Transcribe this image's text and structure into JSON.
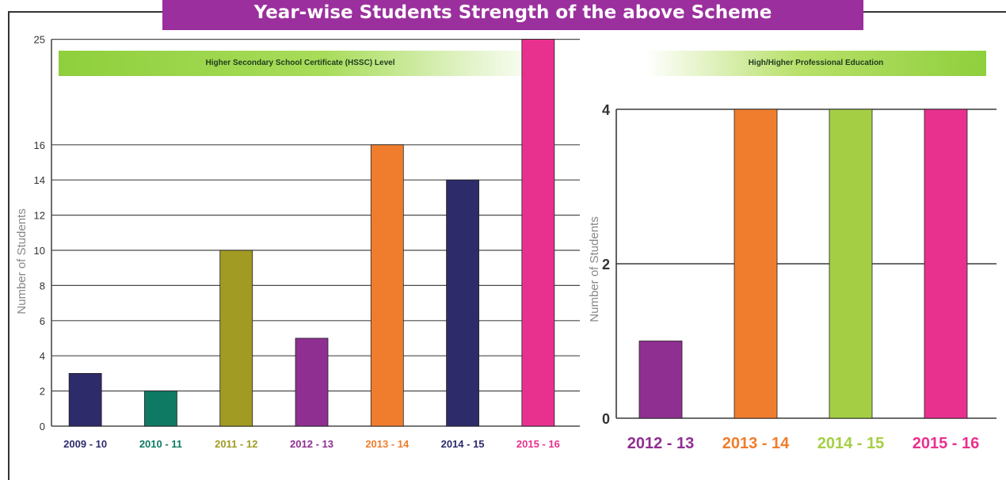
{
  "page": {
    "title": "Year-wise Students Strength of the above Scheme"
  },
  "chart_data": [
    {
      "type": "bar",
      "title": "Higher Secondary School Certificate (HSSC) Level",
      "ylabel": "Number of Students",
      "xlabel": "",
      "categories": [
        "2009 - 10",
        "2010 - 11",
        "2011 - 12",
        "2012 - 13",
        "2013 - 14",
        "2014 - 15",
        "2015 - 16"
      ],
      "values": [
        3,
        2,
        10,
        5,
        16,
        14,
        25
      ],
      "colors": [
        "#2e2b6b",
        "#0f7a63",
        "#a19a23",
        "#8f2f92",
        "#f07d2d",
        "#2e2b6b",
        "#e8318f"
      ],
      "yticks": [
        "0",
        "2",
        "4",
        "6",
        "8",
        "10",
        "12",
        "14",
        "16",
        "25"
      ],
      "grid": true
    },
    {
      "type": "bar",
      "title": "High/Higher Professional Education",
      "ylabel": "Number of Students",
      "xlabel": "",
      "categories": [
        "2012 - 13",
        "2013 - 14",
        "2014 - 15",
        "2015 - 16"
      ],
      "values": [
        1,
        4,
        4,
        4
      ],
      "colors": [
        "#8f2f92",
        "#f07d2d",
        "#a4cf45",
        "#e8318f"
      ],
      "yticks": [
        "0",
        "2",
        "4"
      ],
      "ylim": [
        0,
        4
      ],
      "grid": true
    }
  ]
}
